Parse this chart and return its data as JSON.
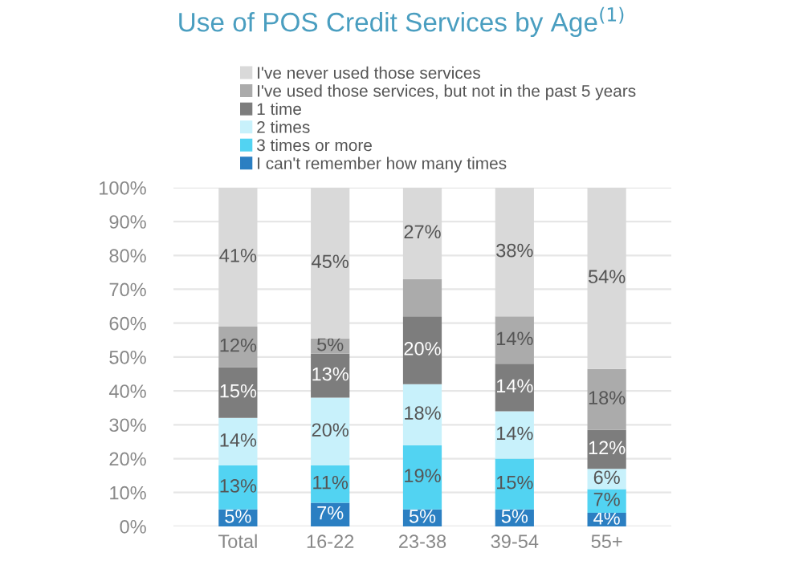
{
  "chart_data": {
    "type": "bar",
    "stacked": true,
    "title": "Use of POS Credit Services by Age$^{(1)}$",
    "categories": [
      "Total",
      "16-22",
      "23-38",
      "39-54",
      "55+"
    ],
    "series": [
      {
        "name": "I can't remember how many times",
        "color": "#2b7fc2",
        "values": [
          5,
          7,
          5,
          5,
          4
        ],
        "value_labels": [
          "5%",
          "7%",
          "5%",
          "5%",
          "4%"
        ]
      },
      {
        "name": "3 times or more",
        "color": "#52d3f2",
        "values": [
          13,
          11,
          19,
          15,
          7
        ],
        "value_labels": [
          "13%",
          "11%",
          "19%",
          "15%",
          "7%"
        ]
      },
      {
        "name": "2 times",
        "color": "#c8f1fb",
        "values": [
          14,
          20,
          18,
          14,
          6
        ],
        "value_labels": [
          "14%",
          "20%",
          "18%",
          "14%",
          "6%"
        ]
      },
      {
        "name": "1 time",
        "color": "#7d7d7d",
        "values": [
          15,
          13,
          20,
          14,
          11.5
        ],
        "value_labels": [
          "15%",
          "13%",
          "20%",
          "14%",
          "12%"
        ]
      },
      {
        "name": "I've used those services, but not in the past 5 years",
        "color": "#ababab",
        "values": [
          12,
          4.5,
          11,
          14,
          18
        ],
        "value_labels": [
          "12%",
          "5%",
          null,
          "14%",
          "18%"
        ]
      },
      {
        "name": "I've never used those services",
        "color": "#d9d9d9",
        "values": [
          41,
          44.5,
          27,
          38,
          53.5
        ],
        "value_labels": [
          "41%",
          "45%",
          "27%",
          "38%",
          "54%"
        ]
      }
    ],
    "ylim": [
      0,
      100
    ],
    "yticks": [
      {
        "value": 0,
        "label": "0%"
      },
      {
        "value": 10,
        "label": "10%"
      },
      {
        "value": 20,
        "label": "20%"
      },
      {
        "value": 30,
        "label": "30%"
      },
      {
        "value": 40,
        "label": "40%"
      },
      {
        "value": 50,
        "label": "50%"
      },
      {
        "value": 60,
        "label": "60%"
      },
      {
        "value": 70,
        "label": "70%"
      },
      {
        "value": 80,
        "label": "80%"
      },
      {
        "value": 90,
        "label": "90%"
      },
      {
        "value": 100,
        "label": "100%"
      }
    ],
    "grid": "y",
    "legend": "top"
  }
}
